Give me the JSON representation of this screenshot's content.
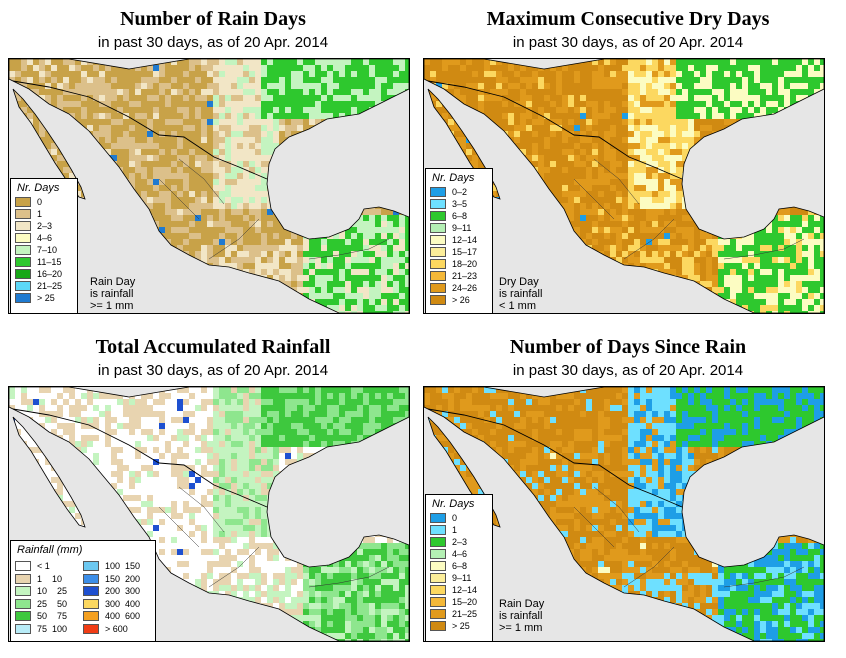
{
  "panels": [
    {
      "title": "Number of Rain Days",
      "subtitle": "in past 30 days, as of  20 Apr. 2014",
      "legend_title": "Nr. Days",
      "legend": [
        {
          "label": "0",
          "color": "#c8a248"
        },
        {
          "label": "1",
          "color": "#dcc08a"
        },
        {
          "label": "2–3",
          "color": "#f2e6c6"
        },
        {
          "label": "4–6",
          "color": "#fcfcc2"
        },
        {
          "label": "7–10",
          "color": "#c4f4c0"
        },
        {
          "label": "11–15",
          "color": "#2ec82e"
        },
        {
          "label": "16–20",
          "color": "#18a818"
        },
        {
          "label": "21–25",
          "color": "#5cd8f8"
        },
        {
          "label": "> 25",
          "color": "#1f7ad0"
        }
      ],
      "note": [
        "Rain Day",
        "is rainfall",
        ">= 1 mm"
      ],
      "palette": {
        "land": "#c8a248",
        "alt": "#dcc08a",
        "east": "#f2e6c6",
        "wet": "#2ec82e",
        "wet2": "#c4f4c0",
        "spot": "#1f7ad0"
      }
    },
    {
      "title": "Maximum Consecutive Dry Days",
      "subtitle": "in past 30 days, as of  20 Apr. 2014",
      "legend_title": "Nr. Days",
      "legend": [
        {
          "label": "0–2",
          "color": "#1e9ee6"
        },
        {
          "label": "3–5",
          "color": "#6ee0ff"
        },
        {
          "label": "6–8",
          "color": "#2ec82e"
        },
        {
          "label": "9–11",
          "color": "#b4f0b4"
        },
        {
          "label": "12–14",
          "color": "#fcfcc2"
        },
        {
          "label": "15–17",
          "color": "#fcee9a"
        },
        {
          "label": "18–20",
          "color": "#fcd860"
        },
        {
          "label": "21–23",
          "color": "#f4b838"
        },
        {
          "label": "24–26",
          "color": "#e09a1c"
        },
        {
          "label": "> 26",
          "color": "#d08a12"
        }
      ],
      "note": [
        "Dry Day",
        "is rainfall",
        "< 1 mm"
      ],
      "palette": {
        "land": "#d08a12",
        "alt": "#e09a1c",
        "east": "#fcd860",
        "wet": "#2ec82e",
        "wet2": "#fcfcc2",
        "spot": "#1e9ee6"
      }
    },
    {
      "title": "Total Accumulated Rainfall",
      "subtitle": "in past 30 days, as of  20 Apr. 2014",
      "legend_title": "Rainfall (mm)",
      "legend_left": [
        {
          "label": "< 1",
          "color": "#ffffff"
        },
        {
          "label": "1    10",
          "color": "#e8d4b0"
        },
        {
          "label": "10    25",
          "color": "#c4f4c0"
        },
        {
          "label": "25    50",
          "color": "#8ee68e"
        },
        {
          "label": "50    75",
          "color": "#3ec83e"
        },
        {
          "label": "75  100",
          "color": "#b8ecf8"
        }
      ],
      "legend_right": [
        {
          "label": "100  150",
          "color": "#6cc8f0"
        },
        {
          "label": "150  200",
          "color": "#3c8ee8"
        },
        {
          "label": "200  300",
          "color": "#1e50d0"
        },
        {
          "label": "300  400",
          "color": "#fcd860"
        },
        {
          "label": "400  600",
          "color": "#f4a020"
        },
        {
          "label": "> 600",
          "color": "#f03c14"
        }
      ],
      "palette": {
        "land": "#ffffff",
        "alt": "#e8d4b0",
        "east": "#c4f4c0",
        "wet": "#3ec83e",
        "wet2": "#8ee68e",
        "spot": "#1e50d0"
      }
    },
    {
      "title": "Number of Days Since Rain",
      "subtitle": "in past 30 days, as of  20 Apr. 2014",
      "legend_title": "Nr. Days",
      "legend": [
        {
          "label": "0",
          "color": "#1e9ee6"
        },
        {
          "label": "1",
          "color": "#6ee0ff"
        },
        {
          "label": "2–3",
          "color": "#2ec82e"
        },
        {
          "label": "4–6",
          "color": "#b4f0b4"
        },
        {
          "label": "6–8",
          "color": "#fcfcc2"
        },
        {
          "label": "9–11",
          "color": "#fcee9a"
        },
        {
          "label": "12–14",
          "color": "#fcd860"
        },
        {
          "label": "15–20",
          "color": "#f4b838"
        },
        {
          "label": "21–25",
          "color": "#e09a1c"
        },
        {
          "label": "> 25",
          "color": "#d08a12"
        }
      ],
      "note": [
        "Rain Day",
        "is rainfall",
        ">= 1 mm"
      ],
      "palette": {
        "land": "#d08a12",
        "alt": "#e09a1c",
        "east": "#6ee0ff",
        "wet": "#2ec82e",
        "wet2": "#1e9ee6",
        "spot": "#fcfcc2"
      }
    }
  ]
}
